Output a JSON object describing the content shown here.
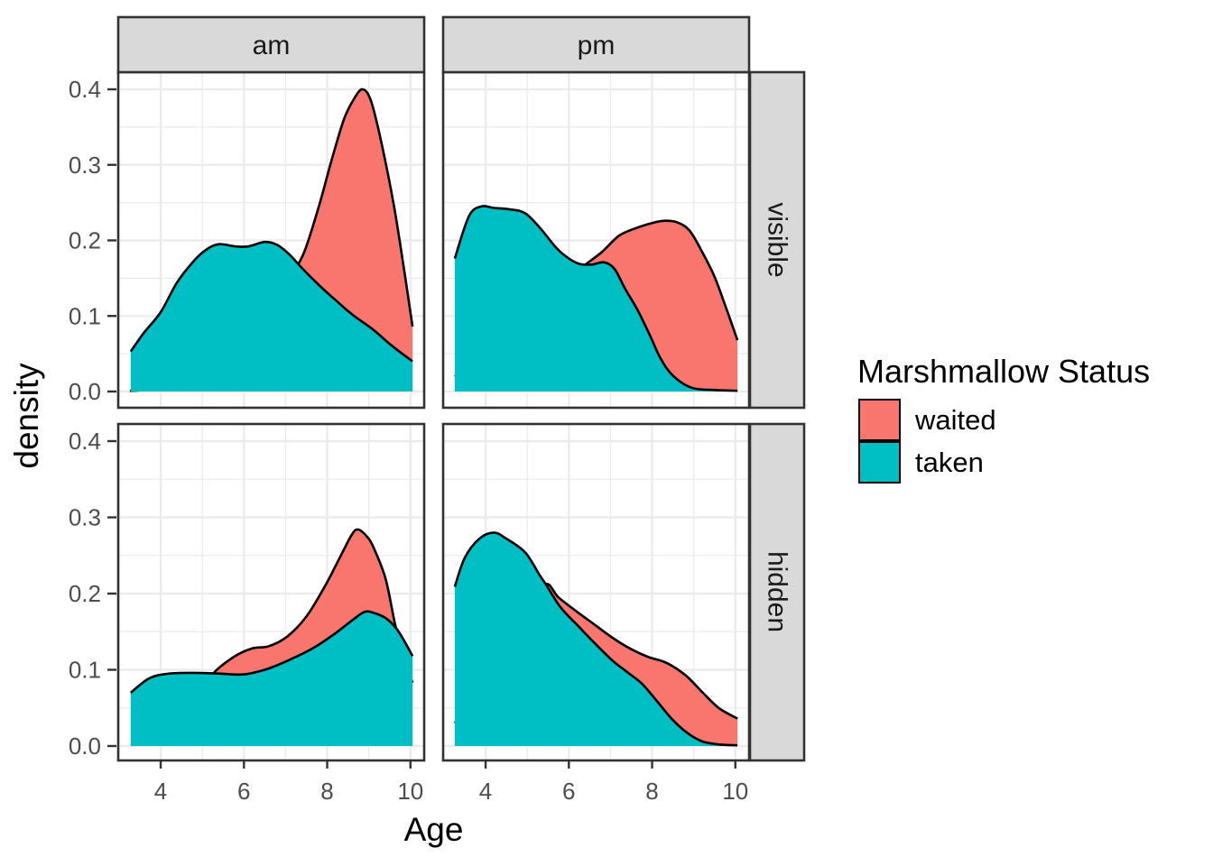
{
  "axes": {
    "x_title": "Age",
    "y_title": "density",
    "x_ticks": [
      {
        "label": "4",
        "value": 4
      },
      {
        "label": "6",
        "value": 6
      },
      {
        "label": "8",
        "value": 8
      },
      {
        "label": "10",
        "value": 10
      }
    ],
    "x_minor": [
      3,
      5,
      7,
      9
    ],
    "y_ticks": [
      {
        "label": "0.0",
        "value": 0.0
      },
      {
        "label": "0.1",
        "value": 0.1
      },
      {
        "label": "0.2",
        "value": 0.2
      },
      {
        "label": "0.3",
        "value": 0.3
      },
      {
        "label": "0.4",
        "value": 0.4
      }
    ],
    "y_minor": [
      0.05,
      0.15,
      0.25,
      0.35
    ]
  },
  "facets": {
    "col_labels": [
      "am",
      "pm"
    ],
    "row_labels": [
      "visible",
      "hidden"
    ]
  },
  "legend": {
    "title": "Marshmallow Status",
    "entries": [
      {
        "label": "waited",
        "color": "#F8766D"
      },
      {
        "label": "taken",
        "color": "#00BFC4"
      }
    ]
  },
  "colors": {
    "waited": "#F8766D",
    "taken": "#00BFC4",
    "strip_fill": "#D9D9D9",
    "strip_border": "#333333",
    "panel_border": "#333333",
    "grid": "#EBEBEB",
    "tick": "#333333",
    "tick_label": "#4D4D4D",
    "curve_stroke": "#000000",
    "panel_bg": "#FFFFFF"
  },
  "chart_data": {
    "type": "area",
    "subtype": "overlaid-density",
    "xlabel": "Age",
    "ylabel": "density",
    "x_domain": [
      2.98,
      10.33
    ],
    "y_domain": [
      -0.02,
      0.42
    ],
    "grid": true,
    "legend_position": "right",
    "panels": [
      {
        "facet_col": "am",
        "facet_row": "visible",
        "series": [
          {
            "name": "waited",
            "points": [
              [
                3.26,
                0.001
              ],
              [
                4.0,
                0.003
              ],
              [
                4.6,
                0.008
              ],
              [
                5.2,
                0.022
              ],
              [
                5.8,
                0.05
              ],
              [
                6.3,
                0.085
              ],
              [
                6.8,
                0.128
              ],
              [
                7.15,
                0.155
              ],
              [
                7.45,
                0.185
              ],
              [
                7.8,
                0.245
              ],
              [
                8.1,
                0.305
              ],
              [
                8.4,
                0.36
              ],
              [
                8.65,
                0.388
              ],
              [
                8.85,
                0.4
              ],
              [
                9.05,
                0.385
              ],
              [
                9.3,
                0.33
              ],
              [
                9.6,
                0.247
              ],
              [
                9.85,
                0.16
              ],
              [
                10.05,
                0.086
              ]
            ]
          },
          {
            "name": "taken",
            "points": [
              [
                3.28,
                0.053
              ],
              [
                3.6,
                0.078
              ],
              [
                4.0,
                0.105
              ],
              [
                4.4,
                0.145
              ],
              [
                4.8,
                0.173
              ],
              [
                5.1,
                0.188
              ],
              [
                5.4,
                0.195
              ],
              [
                5.8,
                0.192
              ],
              [
                6.1,
                0.192
              ],
              [
                6.5,
                0.198
              ],
              [
                6.8,
                0.194
              ],
              [
                7.1,
                0.181
              ],
              [
                7.4,
                0.163
              ],
              [
                7.8,
                0.141
              ],
              [
                8.2,
                0.121
              ],
              [
                8.6,
                0.102
              ],
              [
                9.1,
                0.082
              ],
              [
                9.5,
                0.063
              ],
              [
                9.8,
                0.05
              ],
              [
                10.05,
                0.04
              ]
            ]
          }
        ]
      },
      {
        "facet_col": "pm",
        "facet_row": "visible",
        "series": [
          {
            "name": "waited",
            "points": [
              [
                3.26,
                0.02
              ],
              [
                4.0,
                0.05
              ],
              [
                4.8,
                0.09
              ],
              [
                5.5,
                0.125
              ],
              [
                6.0,
                0.15
              ],
              [
                6.4,
                0.168
              ],
              [
                6.8,
                0.185
              ],
              [
                7.2,
                0.206
              ],
              [
                7.6,
                0.216
              ],
              [
                8.0,
                0.223
              ],
              [
                8.3,
                0.226
              ],
              [
                8.6,
                0.224
              ],
              [
                8.9,
                0.213
              ],
              [
                9.2,
                0.185
              ],
              [
                9.5,
                0.152
              ],
              [
                9.75,
                0.115
              ],
              [
                10.05,
                0.068
              ]
            ]
          },
          {
            "name": "taken",
            "points": [
              [
                3.26,
                0.176
              ],
              [
                3.6,
                0.232
              ],
              [
                3.9,
                0.245
              ],
              [
                4.2,
                0.243
              ],
              [
                4.6,
                0.241
              ],
              [
                4.95,
                0.236
              ],
              [
                5.3,
                0.217
              ],
              [
                5.7,
                0.19
              ],
              [
                6.0,
                0.176
              ],
              [
                6.25,
                0.169
              ],
              [
                6.55,
                0.168
              ],
              [
                6.85,
                0.171
              ],
              [
                7.1,
                0.162
              ],
              [
                7.35,
                0.136
              ],
              [
                7.65,
                0.108
              ],
              [
                7.95,
                0.074
              ],
              [
                8.2,
                0.044
              ],
              [
                8.5,
                0.021
              ],
              [
                8.95,
                0.005
              ],
              [
                9.5,
                0.002
              ],
              [
                10.05,
                0.001
              ]
            ]
          }
        ]
      },
      {
        "facet_col": "am",
        "facet_row": "hidden",
        "series": [
          {
            "name": "waited",
            "points": [
              [
                3.3,
                0.002
              ],
              [
                4.0,
                0.01
              ],
              [
                4.5,
                0.032
              ],
              [
                4.9,
                0.062
              ],
              [
                5.26,
                0.095
              ],
              [
                5.76,
                0.117
              ],
              [
                6.2,
                0.128
              ],
              [
                6.6,
                0.131
              ],
              [
                7.05,
                0.144
              ],
              [
                7.5,
                0.17
              ],
              [
                7.95,
                0.21
              ],
              [
                8.3,
                0.247
              ],
              [
                8.6,
                0.278
              ],
              [
                8.75,
                0.284
              ],
              [
                8.95,
                0.275
              ],
              [
                9.1,
                0.262
              ],
              [
                9.4,
                0.22
              ],
              [
                9.63,
                0.16
              ],
              [
                9.85,
                0.115
              ],
              [
                10.05,
                0.083
              ]
            ]
          },
          {
            "name": "taken",
            "points": [
              [
                3.28,
                0.07
              ],
              [
                3.73,
                0.089
              ],
              [
                4.2,
                0.095
              ],
              [
                4.8,
                0.096
              ],
              [
                5.4,
                0.095
              ],
              [
                6.0,
                0.094
              ],
              [
                6.55,
                0.101
              ],
              [
                7.05,
                0.112
              ],
              [
                7.65,
                0.128
              ],
              [
                8.2,
                0.148
              ],
              [
                8.65,
                0.167
              ],
              [
                8.9,
                0.176
              ],
              [
                9.1,
                0.175
              ],
              [
                9.4,
                0.168
              ],
              [
                9.65,
                0.155
              ],
              [
                9.85,
                0.138
              ],
              [
                10.05,
                0.118
              ]
            ]
          }
        ]
      },
      {
        "facet_col": "pm",
        "facet_row": "hidden",
        "series": [
          {
            "name": "waited",
            "points": [
              [
                3.26,
                0.03
              ],
              [
                4.0,
                0.08
              ],
              [
                4.6,
                0.13
              ],
              [
                5.0,
                0.17
              ],
              [
                5.43,
                0.212
              ],
              [
                5.75,
                0.195
              ],
              [
                6.2,
                0.176
              ],
              [
                6.6,
                0.16
              ],
              [
                7.05,
                0.142
              ],
              [
                7.5,
                0.127
              ],
              [
                7.9,
                0.117
              ],
              [
                8.35,
                0.109
              ],
              [
                8.8,
                0.093
              ],
              [
                9.2,
                0.071
              ],
              [
                9.6,
                0.05
              ],
              [
                10.05,
                0.036
              ]
            ]
          },
          {
            "name": "taken",
            "points": [
              [
                3.26,
                0.209
              ],
              [
                3.5,
                0.247
              ],
              [
                3.85,
                0.272
              ],
              [
                4.2,
                0.28
              ],
              [
                4.5,
                0.272
              ],
              [
                4.95,
                0.254
              ],
              [
                5.3,
                0.224
              ],
              [
                5.45,
                0.212
              ],
              [
                5.8,
                0.182
              ],
              [
                6.25,
                0.156
              ],
              [
                6.6,
                0.136
              ],
              [
                7.05,
                0.112
              ],
              [
                7.4,
                0.097
              ],
              [
                7.75,
                0.082
              ],
              [
                8.1,
                0.06
              ],
              [
                8.5,
                0.034
              ],
              [
                8.85,
                0.017
              ],
              [
                9.2,
                0.006
              ],
              [
                9.6,
                0.002
              ],
              [
                10.05,
                0.001
              ]
            ]
          }
        ]
      }
    ]
  }
}
